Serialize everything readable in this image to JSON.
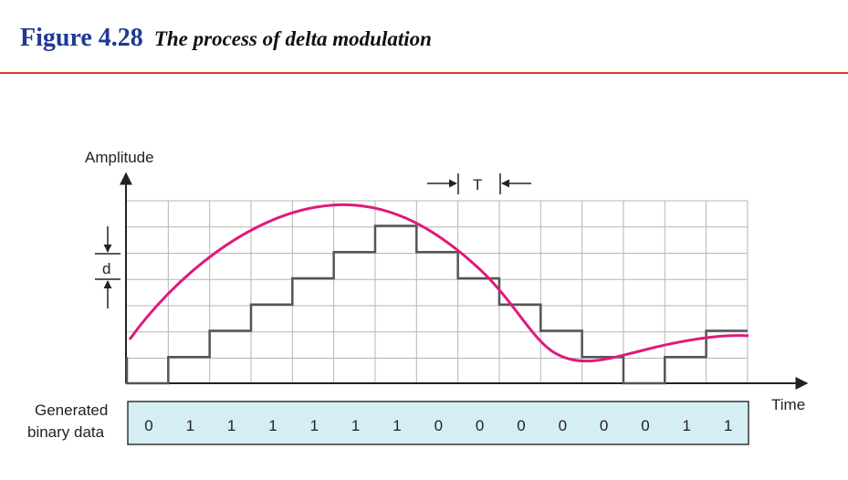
{
  "title": {
    "figure_number": "Figure 4.28",
    "caption": "The process of delta modulation"
  },
  "diagram": {
    "y_axis_label": "Amplitude",
    "x_axis_label": "Time",
    "step_label": "d",
    "period_label": "T",
    "binary_label_line1": "Generated",
    "binary_label_line2": "binary data",
    "bits": [
      "0",
      "1",
      "1",
      "1",
      "1",
      "1",
      "1",
      "0",
      "0",
      "0",
      "0",
      "0",
      "0",
      "1",
      "1"
    ],
    "colors": {
      "analog_signal": "#e0197d",
      "staircase": "#555555",
      "grid": "#b5b5b5",
      "binary_box_fill": "#d4eef4",
      "title_blue": "#1f3a93",
      "rule_red": "#e5322d"
    }
  }
}
